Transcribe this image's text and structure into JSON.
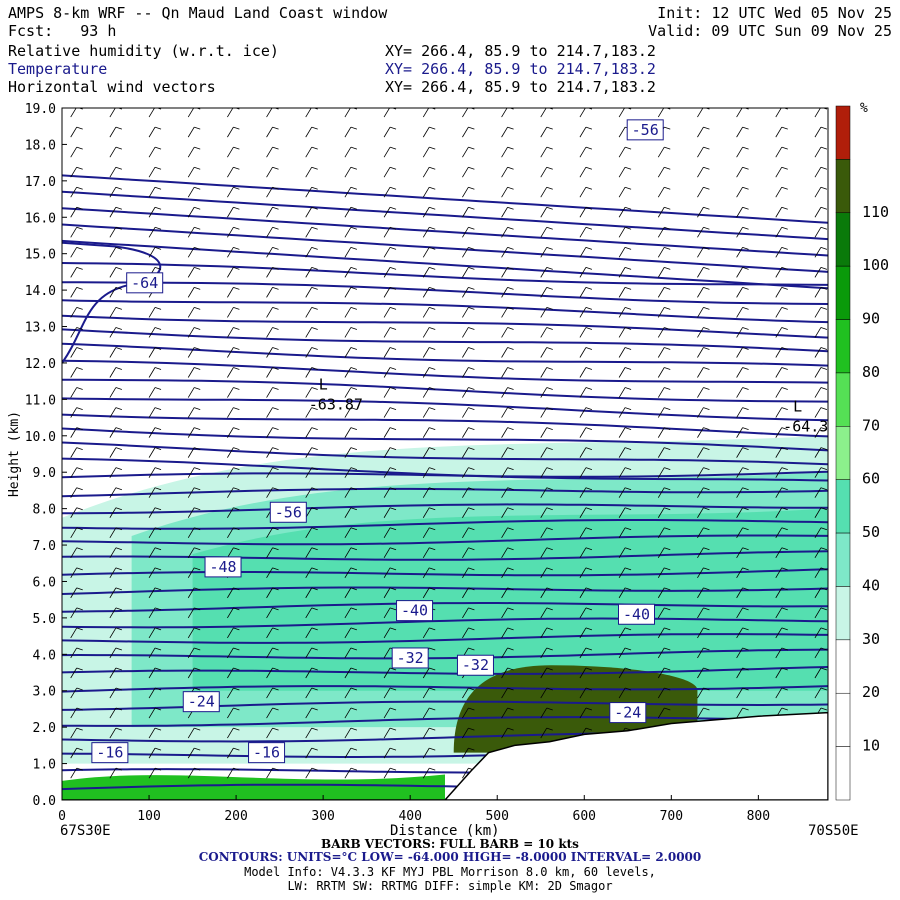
{
  "header": {
    "title": "AMPS 8-km WRF -- Qn Maud Land Coast window",
    "fcst_label": "Fcst:",
    "fcst_value": "93 h",
    "init": "Init: 12 UTC Wed 05 Nov 25",
    "valid": "Valid: 09 UTC Sun 09 Nov 25",
    "fields": [
      {
        "name": "Relative humidity (w.r.t. ice)",
        "xy": "XY= 266.4, 85.9 to 214.7,183.2",
        "color": "#000000"
      },
      {
        "name": "Temperature",
        "xy": "XY= 266.4, 85.9 to 214.7,183.2",
        "color": "#1a1a8c"
      },
      {
        "name": "Horizontal wind vectors",
        "xy": "XY= 266.4, 85.9 to 214.7,183.2",
        "color": "#000000"
      }
    ]
  },
  "footer": {
    "left_coord": "67S30E",
    "right_coord": "70S50E",
    "barb_info": "BARB VECTORS: FULL BARB = 10 kts",
    "contours_info": "CONTOURS: UNITS=°C LOW= -64.000 HIGH= -8.0000 INTERVAL= 2.0000",
    "model_line1": "Model Info: V4.3.3 KF MYJ PBL Morrison 8.0 km, 60 levels,",
    "model_line2": "LW: RRTM SW: RRTMG DIFF: simple KM: 2D Smagor"
  },
  "colorbar": {
    "unit": "%",
    "ticks": [
      10,
      20,
      30,
      40,
      50,
      60,
      70,
      80,
      90,
      100,
      110
    ],
    "colors": [
      "#ffffff",
      "#ffffff",
      "#ffffff",
      "#c8f5e6",
      "#7ee8c8",
      "#55dfb0",
      "#8cf08c",
      "#55e055",
      "#20c020",
      "#0a9a0a",
      "#0a7a0a",
      "#3a5a0a",
      "#b01e0a"
    ]
  },
  "chart_data": {
    "type": "cross-section",
    "xlabel": "Distance (km)",
    "ylabel": "Height (km)",
    "xlim": [
      0,
      880
    ],
    "ylim": [
      0,
      19
    ],
    "x_ticks": [
      0,
      100,
      200,
      300,
      400,
      500,
      600,
      700,
      800
    ],
    "y_ticks": [
      "0.0",
      "1.0",
      "2.0",
      "3.0",
      "4.0",
      "5.0",
      "6.0",
      "7.0",
      "8.0",
      "9.0",
      "10.0",
      "11.0",
      "12.0",
      "13.0",
      "14.0",
      "15.0",
      "16.0",
      "17.0",
      "18.0",
      "19.0"
    ],
    "terrain": [
      [
        0,
        0
      ],
      [
        440,
        0
      ],
      [
        470,
        0.8
      ],
      [
        490,
        1.3
      ],
      [
        520,
        1.5
      ],
      [
        560,
        1.6
      ],
      [
        600,
        1.8
      ],
      [
        650,
        1.9
      ],
      [
        700,
        2.1
      ],
      [
        750,
        2.2
      ],
      [
        800,
        2.3
      ],
      [
        880,
        2.4
      ]
    ],
    "temperature_labels": [
      {
        "text": "-56",
        "x": 670,
        "y": 18.4
      },
      {
        "text": "-64",
        "x": 95,
        "y": 14.2
      },
      {
        "text": "-56",
        "x": 260,
        "y": 7.9
      },
      {
        "text": "-48",
        "x": 185,
        "y": 6.4
      },
      {
        "text": "-40",
        "x": 405,
        "y": 5.2
      },
      {
        "text": "-40",
        "x": 660,
        "y": 5.1
      },
      {
        "text": "-32",
        "x": 400,
        "y": 3.9
      },
      {
        "text": "-32",
        "x": 475,
        "y": 3.7
      },
      {
        "text": "-24",
        "x": 160,
        "y": 2.7
      },
      {
        "text": "-24",
        "x": 650,
        "y": 2.4
      },
      {
        "text": "-16",
        "x": 55,
        "y": 1.3
      },
      {
        "text": "-16",
        "x": 235,
        "y": 1.3
      }
    ],
    "lows": [
      {
        "marker": "L",
        "value": "-63.87",
        "x": 295,
        "y": 11.1
      },
      {
        "marker": "L",
        "value": "-64.3",
        "x": 840,
        "y": 10.5
      }
    ],
    "rh_regions": [
      {
        "level": "30-40",
        "x_start": 0,
        "x_end": 880,
        "y_min": 1.0,
        "y_max": 10.0
      },
      {
        "level": "40-50",
        "x_start": 80,
        "x_end": 880,
        "y_min": 2.0,
        "y_max": 9.0
      },
      {
        "level": "50-60",
        "x_start": 150,
        "x_end": 880,
        "y_min": 3.0,
        "y_max": 8.0
      },
      {
        "level": "80-100",
        "x_start": 0,
        "x_end": 440,
        "y_min": 0,
        "y_max": 0.7
      },
      {
        "level": "100-110",
        "x_start": 450,
        "x_end": 730,
        "y_min": 1.3,
        "y_max": 3.7
      }
    ]
  }
}
